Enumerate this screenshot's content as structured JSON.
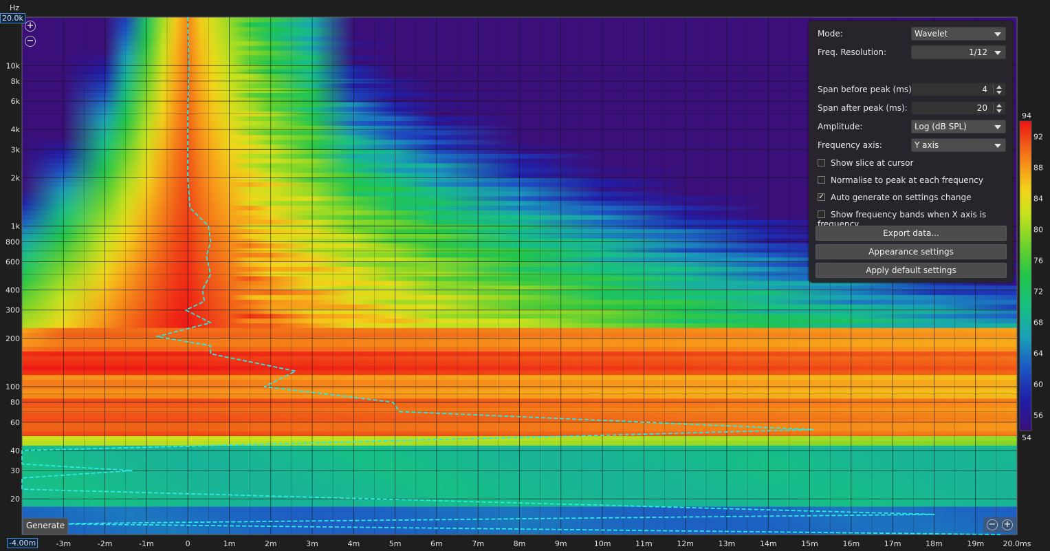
{
  "chart": {
    "unit_label": "Hz",
    "cursor_freq": "20.0k",
    "cursor_time": "-4.00m",
    "colors": {
      "background": "#1e1e1e",
      "trace": "#2ee8e0",
      "grid": "#000000"
    }
  },
  "chart_data": {
    "type": "heatmap",
    "title": "",
    "xlabel": "",
    "ylabel": "Hz",
    "x_scale": "linear",
    "y_scale": "log",
    "xlim": [
      -4,
      20
    ],
    "ylim": [
      12,
      20000
    ],
    "x_ticks": [
      {
        "v": -3,
        "label": "-3m"
      },
      {
        "v": -2,
        "label": "-2m"
      },
      {
        "v": -1,
        "label": "-1m"
      },
      {
        "v": 0,
        "label": "0"
      },
      {
        "v": 1,
        "label": "1m"
      },
      {
        "v": 2,
        "label": "2m"
      },
      {
        "v": 3,
        "label": "3m"
      },
      {
        "v": 4,
        "label": "4m"
      },
      {
        "v": 5,
        "label": "5m"
      },
      {
        "v": 6,
        "label": "6m"
      },
      {
        "v": 7,
        "label": "7m"
      },
      {
        "v": 8,
        "label": "8m"
      },
      {
        "v": 9,
        "label": "9m"
      },
      {
        "v": 10,
        "label": "10m"
      },
      {
        "v": 11,
        "label": "11m"
      },
      {
        "v": 12,
        "label": "12m"
      },
      {
        "v": 13,
        "label": "13m"
      },
      {
        "v": 14,
        "label": "14m"
      },
      {
        "v": 15,
        "label": "15m"
      },
      {
        "v": 16,
        "label": "16m"
      },
      {
        "v": 17,
        "label": "17m"
      },
      {
        "v": 18,
        "label": "18m"
      },
      {
        "v": 19,
        "label": "19m"
      },
      {
        "v": 20,
        "label": "20.0ms"
      }
    ],
    "y_ticks": [
      {
        "v": 20,
        "label": "20"
      },
      {
        "v": 30,
        "label": "30"
      },
      {
        "v": 40,
        "label": "40"
      },
      {
        "v": 60,
        "label": "60"
      },
      {
        "v": 80,
        "label": "80"
      },
      {
        "v": 100,
        "label": "100"
      },
      {
        "v": 200,
        "label": "200"
      },
      {
        "v": 300,
        "label": "300"
      },
      {
        "v": 400,
        "label": "400"
      },
      {
        "v": 600,
        "label": "600"
      },
      {
        "v": 800,
        "label": "800"
      },
      {
        "v": 1000,
        "label": "1k"
      },
      {
        "v": 2000,
        "label": "2k"
      },
      {
        "v": 3000,
        "label": "3k"
      },
      {
        "v": 4000,
        "label": "4k"
      },
      {
        "v": 6000,
        "label": "6k"
      },
      {
        "v": 8000,
        "label": "8k"
      },
      {
        "v": 10000,
        "label": "10k"
      }
    ],
    "y_minor_ticks": [
      50,
      70,
      90,
      500,
      700,
      900,
      5000,
      7000,
      9000
    ],
    "colorbar": {
      "min": 54,
      "max": 94,
      "ticks": [
        92,
        88,
        84,
        80,
        76,
        72,
        68,
        64,
        60,
        56
      ],
      "min_label": "54",
      "max_label": "94"
    },
    "peak_trace": [
      {
        "t": 0.0,
        "f": 20000
      },
      {
        "t": 0.02,
        "f": 10000
      },
      {
        "t": 0.0,
        "f": 5000
      },
      {
        "t": 0.0,
        "f": 2000
      },
      {
        "t": 0.05,
        "f": 1300
      },
      {
        "t": 0.5,
        "f": 1000
      },
      {
        "t": 0.55,
        "f": 800
      },
      {
        "t": 0.45,
        "f": 650
      },
      {
        "t": 0.55,
        "f": 500
      },
      {
        "t": 0.35,
        "f": 400
      },
      {
        "t": 0.4,
        "f": 340
      },
      {
        "t": -0.05,
        "f": 300
      },
      {
        "t": 0.55,
        "f": 250
      },
      {
        "t": -0.75,
        "f": 205
      },
      {
        "t": 0.55,
        "f": 180
      },
      {
        "t": 0.55,
        "f": 160
      },
      {
        "t": 2.6,
        "f": 125
      },
      {
        "t": 1.85,
        "f": 100
      },
      {
        "t": 4.95,
        "f": 80
      },
      {
        "t": 5.1,
        "f": 70
      },
      {
        "t": 15.1,
        "f": 54
      },
      {
        "t": -4.0,
        "f": 40
      },
      {
        "t": -4.0,
        "f": 33
      },
      {
        "t": -1.35,
        "f": 30
      },
      {
        "t": -4.0,
        "f": 27
      },
      {
        "t": -4.0,
        "f": 23
      },
      {
        "t": 18.0,
        "f": 16
      },
      {
        "t": -3.4,
        "f": 14
      },
      {
        "t": 19.6,
        "f": 12
      }
    ],
    "bands": [
      {
        "f_low": 115,
        "f_high": 165,
        "level": 93
      },
      {
        "f_low": 85,
        "f_high": 115,
        "level": 89
      },
      {
        "f_low": 165,
        "f_high": 230,
        "level": 90
      },
      {
        "f_low": 50,
        "f_high": 85,
        "level": 91
      },
      {
        "f_low": 44,
        "f_high": 50,
        "level": 82
      },
      {
        "f_low": 12,
        "f_high": 44,
        "level": 70
      }
    ]
  },
  "panel": {
    "mode_label": "Mode:",
    "mode_value": "Wavelet",
    "freq_res_label": "Freq. Resolution:",
    "freq_res_value": "1/12",
    "span_before_label": "Span before peak (ms):",
    "span_before_value": "4",
    "span_after_label": "Span after peak (ms):",
    "span_after_value": "20",
    "amplitude_label": "Amplitude:",
    "amplitude_value": "Log (dB SPL)",
    "freq_axis_label": "Frequency axis:",
    "freq_axis_value": "Y axis",
    "checks": [
      {
        "label": "Show slice at cursor",
        "checked": false
      },
      {
        "label": "Normalise to peak at each frequency",
        "checked": false
      },
      {
        "label": "Auto generate on settings change",
        "checked": true
      },
      {
        "label": "Show frequency bands when X axis is frequency",
        "checked": false
      }
    ],
    "export_label": "Export data...",
    "appearance_label": "Appearance settings",
    "defaults_label": "Apply default settings"
  },
  "generate_label": "Generate",
  "zoom_in_glyph": "+",
  "zoom_out_glyph": "−"
}
